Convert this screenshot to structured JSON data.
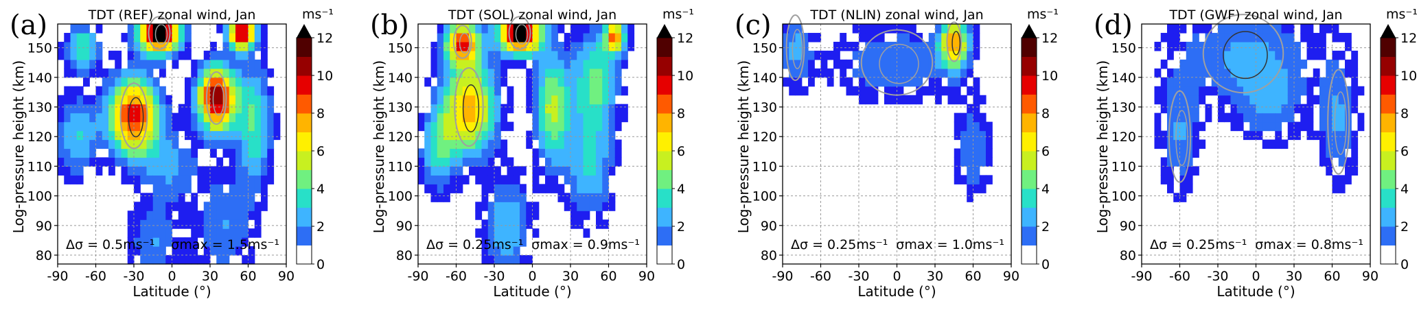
{
  "figure": {
    "description_title": "TDT zonal wind panels"
  },
  "colorbar": {
    "units": "ms⁻¹",
    "ticks": [
      "0",
      "2",
      "4",
      "6",
      "8",
      "10",
      "12"
    ],
    "colors": [
      "#ffffff",
      "#1e1ef0",
      "#2d6ef5",
      "#3eb4ff",
      "#28e0c8",
      "#70f080",
      "#c8f020",
      "#fff000",
      "#ffb400",
      "#ff5a00",
      "#e60000",
      "#960000",
      "#500000",
      "#000000"
    ]
  },
  "chart_data": [
    {
      "type": "heatmap",
      "panel_letter": "(a)",
      "title": "TDT (REF) zonal wind, Jan",
      "xlabel": "Latitude (°)",
      "ylabel": "Log-pressure height (km)",
      "xlim": [
        -90,
        90
      ],
      "ylim": [
        77,
        158
      ],
      "xticks": [
        "-90",
        "-60",
        "-30",
        "0",
        "30",
        "60",
        "90"
      ],
      "yticks": [
        "80",
        "90",
        "100",
        "110",
        "120",
        "130",
        "140",
        "150"
      ],
      "colorbar_range": [
        0,
        12
      ],
      "colorbar_units": "ms⁻¹",
      "annotation_delta": "Δσ = 0.5ms⁻¹",
      "annotation_max": "σmax = 1.5ms⁻¹",
      "blobs": [
        {
          "lat": -30,
          "z": 127,
          "amp": 10.5,
          "slat": 15,
          "sz": 10
        },
        {
          "lat": 35,
          "z": 133,
          "amp": 12,
          "slat": 11,
          "sz": 8
        },
        {
          "lat": -10,
          "z": 155,
          "amp": 13,
          "slat": 12,
          "sz": 5
        },
        {
          "lat": 55,
          "z": 155,
          "amp": 11,
          "slat": 8,
          "sz": 4
        },
        {
          "lat": -70,
          "z": 150,
          "amp": 5,
          "slat": 10,
          "sz": 6
        },
        {
          "lat": -75,
          "z": 120,
          "amp": 4,
          "slat": 12,
          "sz": 10
        },
        {
          "lat": -15,
          "z": 85,
          "amp": 3,
          "slat": 14,
          "sz": 10
        },
        {
          "lat": 40,
          "z": 90,
          "amp": 3,
          "slat": 18,
          "sz": 14
        },
        {
          "lat": 65,
          "z": 125,
          "amp": 5,
          "slat": 10,
          "sz": 15
        },
        {
          "lat": 0,
          "z": 110,
          "amp": 3,
          "slat": 15,
          "sz": 8
        }
      ],
      "threshold": 1.2
    },
    {
      "type": "heatmap",
      "panel_letter": "(b)",
      "title": "TDT (SOL) zonal wind, Jan",
      "xlabel": "Latitude (°)",
      "ylabel": "Log-pressure height (km)",
      "xlim": [
        -90,
        90
      ],
      "ylim": [
        77,
        158
      ],
      "xticks": [
        "-90",
        "-60",
        "-30",
        "0",
        "30",
        "60",
        "90"
      ],
      "yticks": [
        "80",
        "90",
        "100",
        "110",
        "120",
        "130",
        "140",
        "150"
      ],
      "colorbar_range": [
        0,
        12
      ],
      "colorbar_units": "ms⁻¹",
      "annotation_delta": "Δσ = 0.25ms⁻¹",
      "annotation_max": "σmax = 0.9ms⁻¹",
      "blobs": [
        {
          "lat": -50,
          "z": 130,
          "amp": 8.5,
          "slat": 16,
          "sz": 12
        },
        {
          "lat": -10,
          "z": 155,
          "amp": 13,
          "slat": 12,
          "sz": 5
        },
        {
          "lat": -55,
          "z": 152,
          "amp": 9,
          "slat": 10,
          "sz": 5
        },
        {
          "lat": 15,
          "z": 130,
          "amp": 6,
          "slat": 10,
          "sz": 14
        },
        {
          "lat": 50,
          "z": 140,
          "amp": 5,
          "slat": 14,
          "sz": 12
        },
        {
          "lat": 65,
          "z": 154,
          "amp": 8,
          "slat": 6,
          "sz": 4
        },
        {
          "lat": 45,
          "z": 110,
          "amp": 4,
          "slat": 14,
          "sz": 14
        },
        {
          "lat": -20,
          "z": 90,
          "amp": 4,
          "slat": 14,
          "sz": 12
        },
        {
          "lat": -75,
          "z": 115,
          "amp": 4,
          "slat": 10,
          "sz": 10
        }
      ],
      "threshold": 1.2
    },
    {
      "type": "heatmap",
      "panel_letter": "(c)",
      "title": "TDT (NLIN) zonal wind, Jan",
      "xlabel": "Latitude (°)",
      "ylabel": "Log-pressure height (km)",
      "xlim": [
        -90,
        90
      ],
      "ylim": [
        77,
        158
      ],
      "xticks": [
        "-90",
        "-60",
        "-30",
        "0",
        "30",
        "60",
        "90"
      ],
      "yticks": [
        "80",
        "90",
        "100",
        "110",
        "120",
        "130",
        "140",
        "150"
      ],
      "colorbar_range": [
        0,
        12
      ],
      "colorbar_units": "ms⁻¹",
      "annotation_delta": "Δσ = 0.25ms⁻¹",
      "annotation_max": "σmax = 1.0ms⁻¹",
      "blobs": [
        {
          "lat": 45,
          "z": 152,
          "amp": 8,
          "slat": 8,
          "sz": 6
        },
        {
          "lat": 0,
          "z": 145,
          "amp": 3,
          "slat": 40,
          "sz": 10
        },
        {
          "lat": -80,
          "z": 150,
          "amp": 3,
          "slat": 10,
          "sz": 10
        },
        {
          "lat": 60,
          "z": 115,
          "amp": 3,
          "slat": 10,
          "sz": 12
        }
      ],
      "threshold": 1.2
    },
    {
      "type": "heatmap",
      "panel_letter": "(d)",
      "title": "TDT (GWF) zonal wind, Jan",
      "xlabel": "Latitude (°)",
      "ylabel": "Log-pressure height (km)",
      "xlim": [
        -90,
        90
      ],
      "ylim": [
        77,
        158
      ],
      "xticks": [
        "-90",
        "-60",
        "-30",
        "0",
        "30",
        "60",
        "90"
      ],
      "yticks": [
        "80",
        "90",
        "100",
        "110",
        "120",
        "130",
        "140",
        "150"
      ],
      "colorbar_range": [
        0,
        12
      ],
      "colorbar_units": "ms⁻¹",
      "annotation_delta": "Δσ = 0.25ms⁻¹",
      "annotation_max": "σmax = 0.8ms⁻¹",
      "blobs": [
        {
          "lat": -10,
          "z": 148,
          "amp": 3,
          "slat": 45,
          "sz": 12
        },
        {
          "lat": -60,
          "z": 120,
          "amp": 3,
          "slat": 12,
          "sz": 14
        },
        {
          "lat": 65,
          "z": 125,
          "amp": 3,
          "slat": 12,
          "sz": 16
        },
        {
          "lat": 10,
          "z": 130,
          "amp": 2.5,
          "slat": 20,
          "sz": 10
        }
      ],
      "threshold": 1.2
    }
  ]
}
